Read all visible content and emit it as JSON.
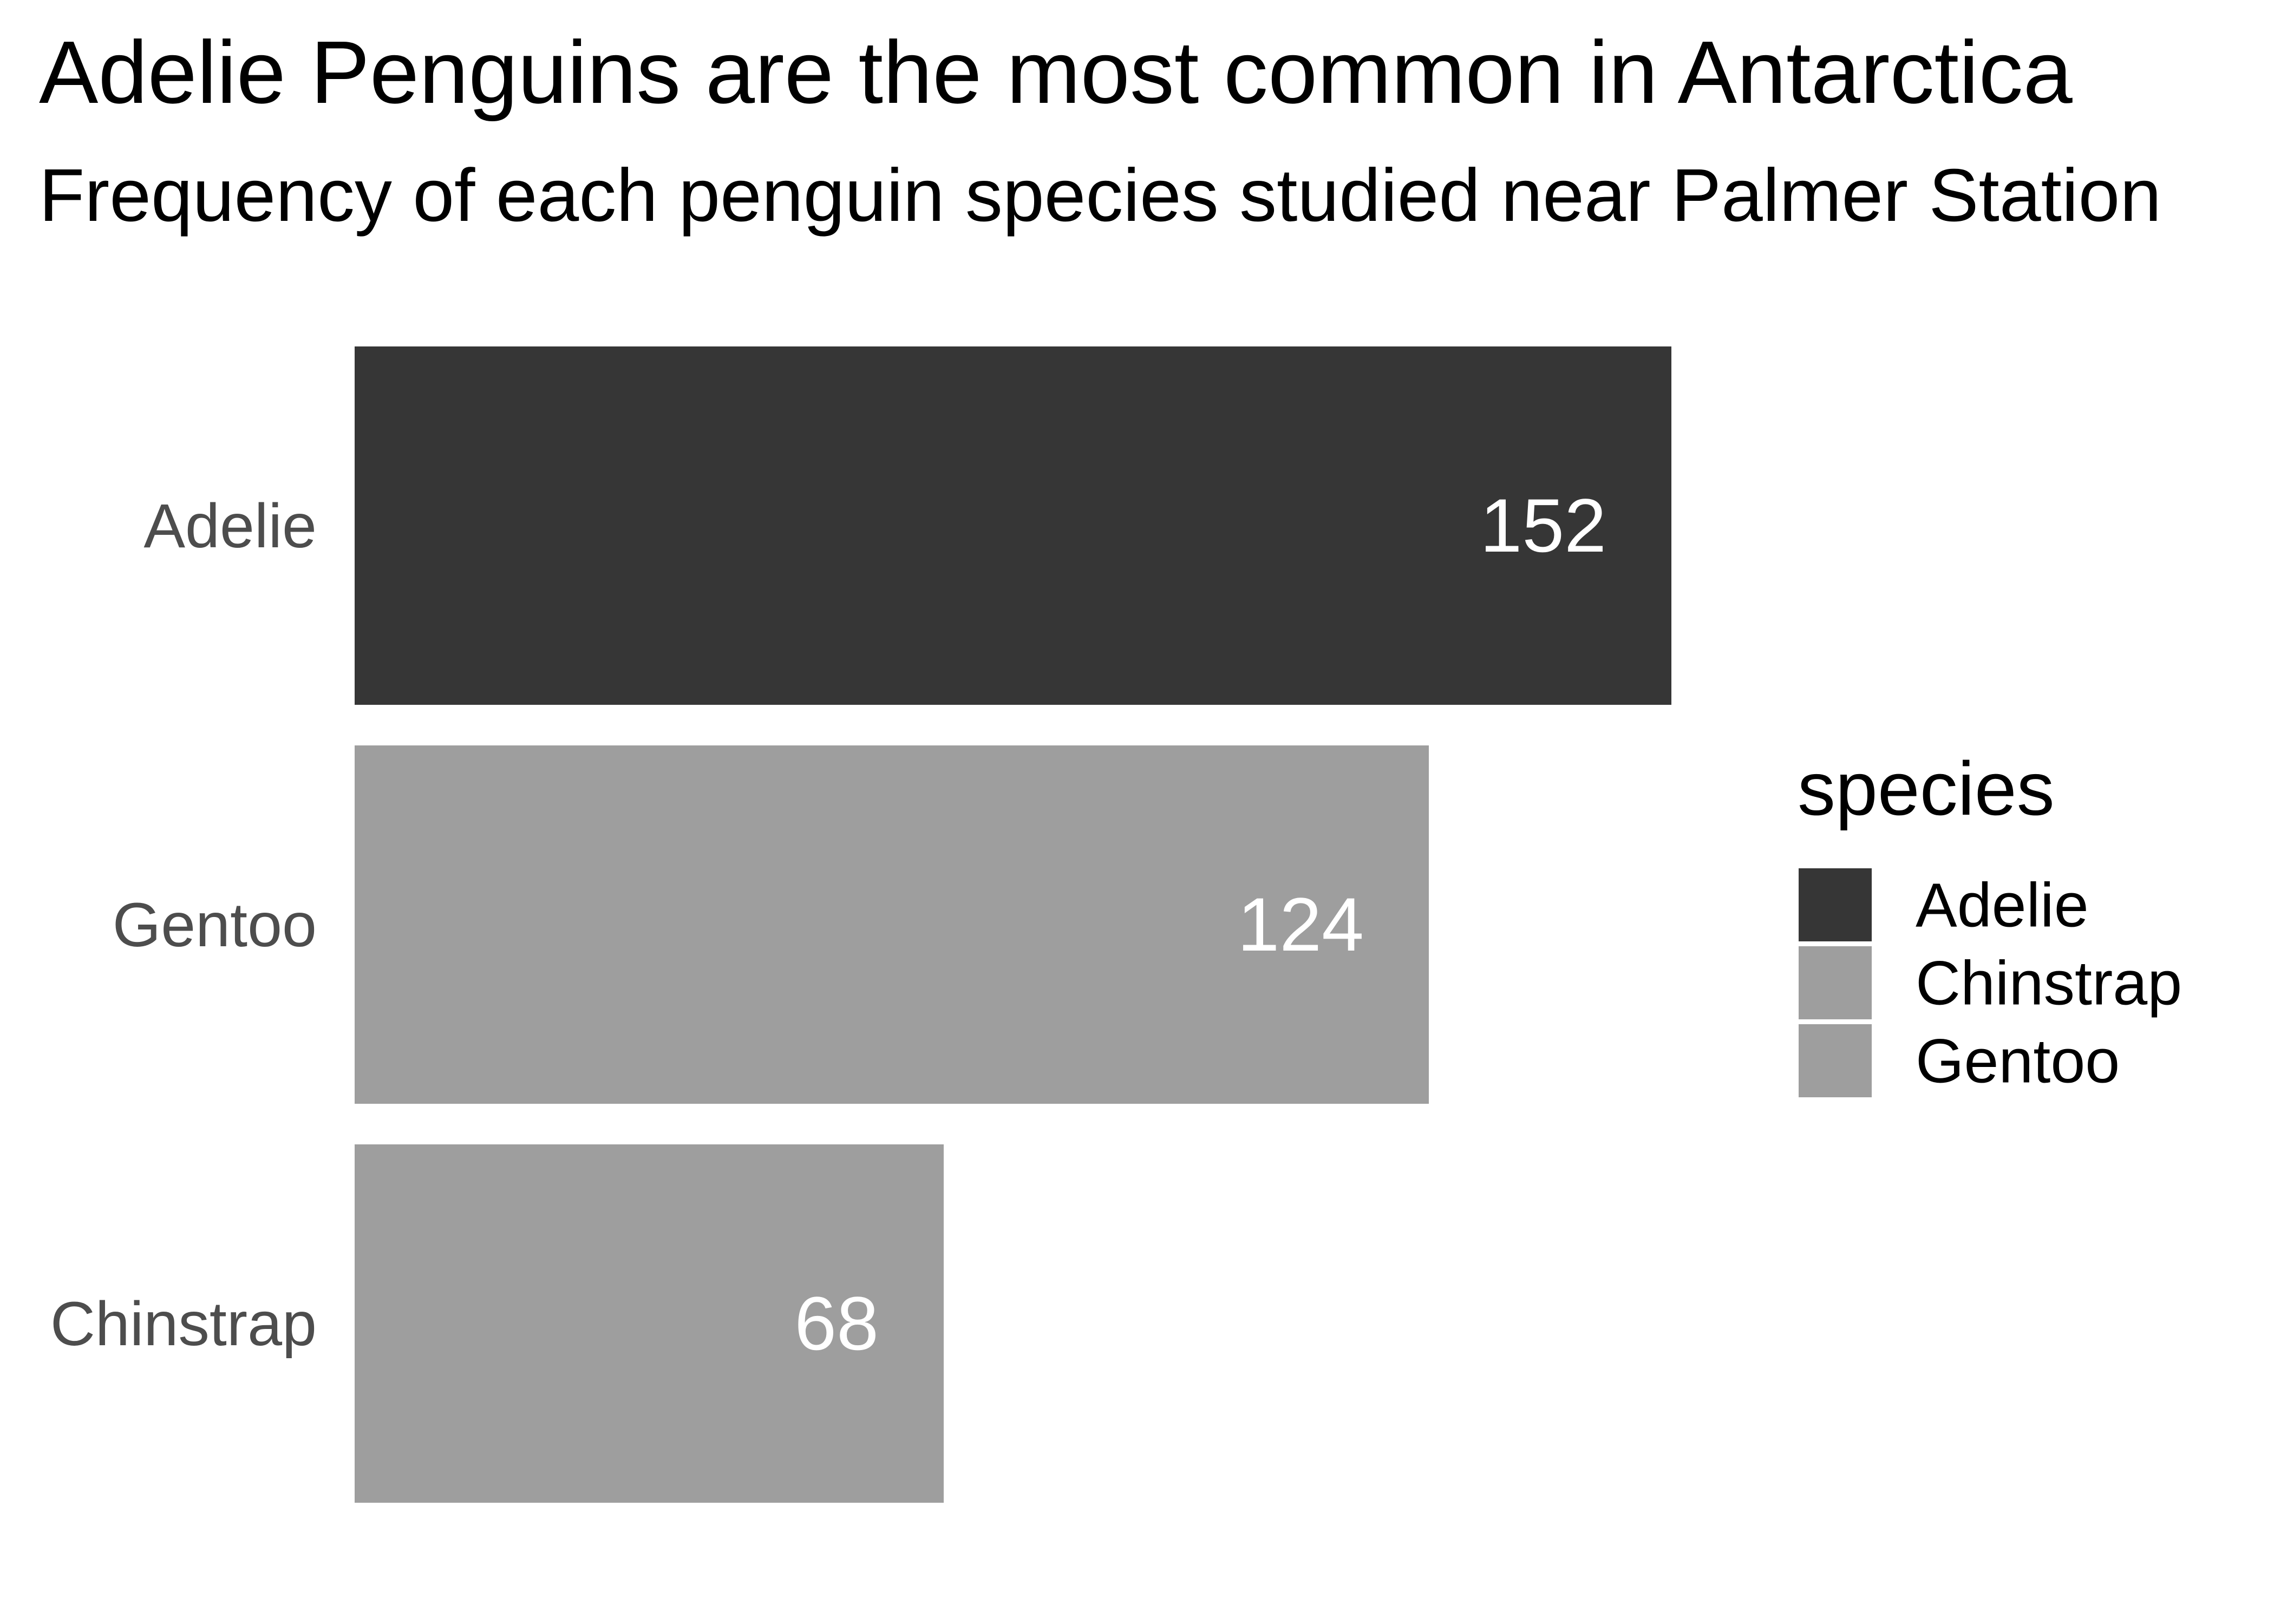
{
  "chart_data": {
    "type": "bar",
    "orientation": "horizontal",
    "title": "Adelie Penguins are the most common in Antarctica",
    "subtitle": "Frequency of each penguin species studied near Palmer Station",
    "categories": [
      "Adelie",
      "Gentoo",
      "Chinstrap"
    ],
    "values": [
      152,
      124,
      68
    ],
    "value_labels": [
      "152",
      "124",
      "68"
    ],
    "bar_colors": [
      "#363636",
      "#9e9e9e",
      "#9e9e9e"
    ],
    "xlim": [
      0,
      160
    ],
    "grid": false,
    "x_axis_shown": false,
    "legend": {
      "title": "species",
      "position": "right",
      "items": [
        {
          "label": "Adelie",
          "color": "#363636"
        },
        {
          "label": "Chinstrap",
          "color": "#9e9e9e"
        },
        {
          "label": "Gentoo",
          "color": "#9e9e9e"
        }
      ]
    }
  }
}
